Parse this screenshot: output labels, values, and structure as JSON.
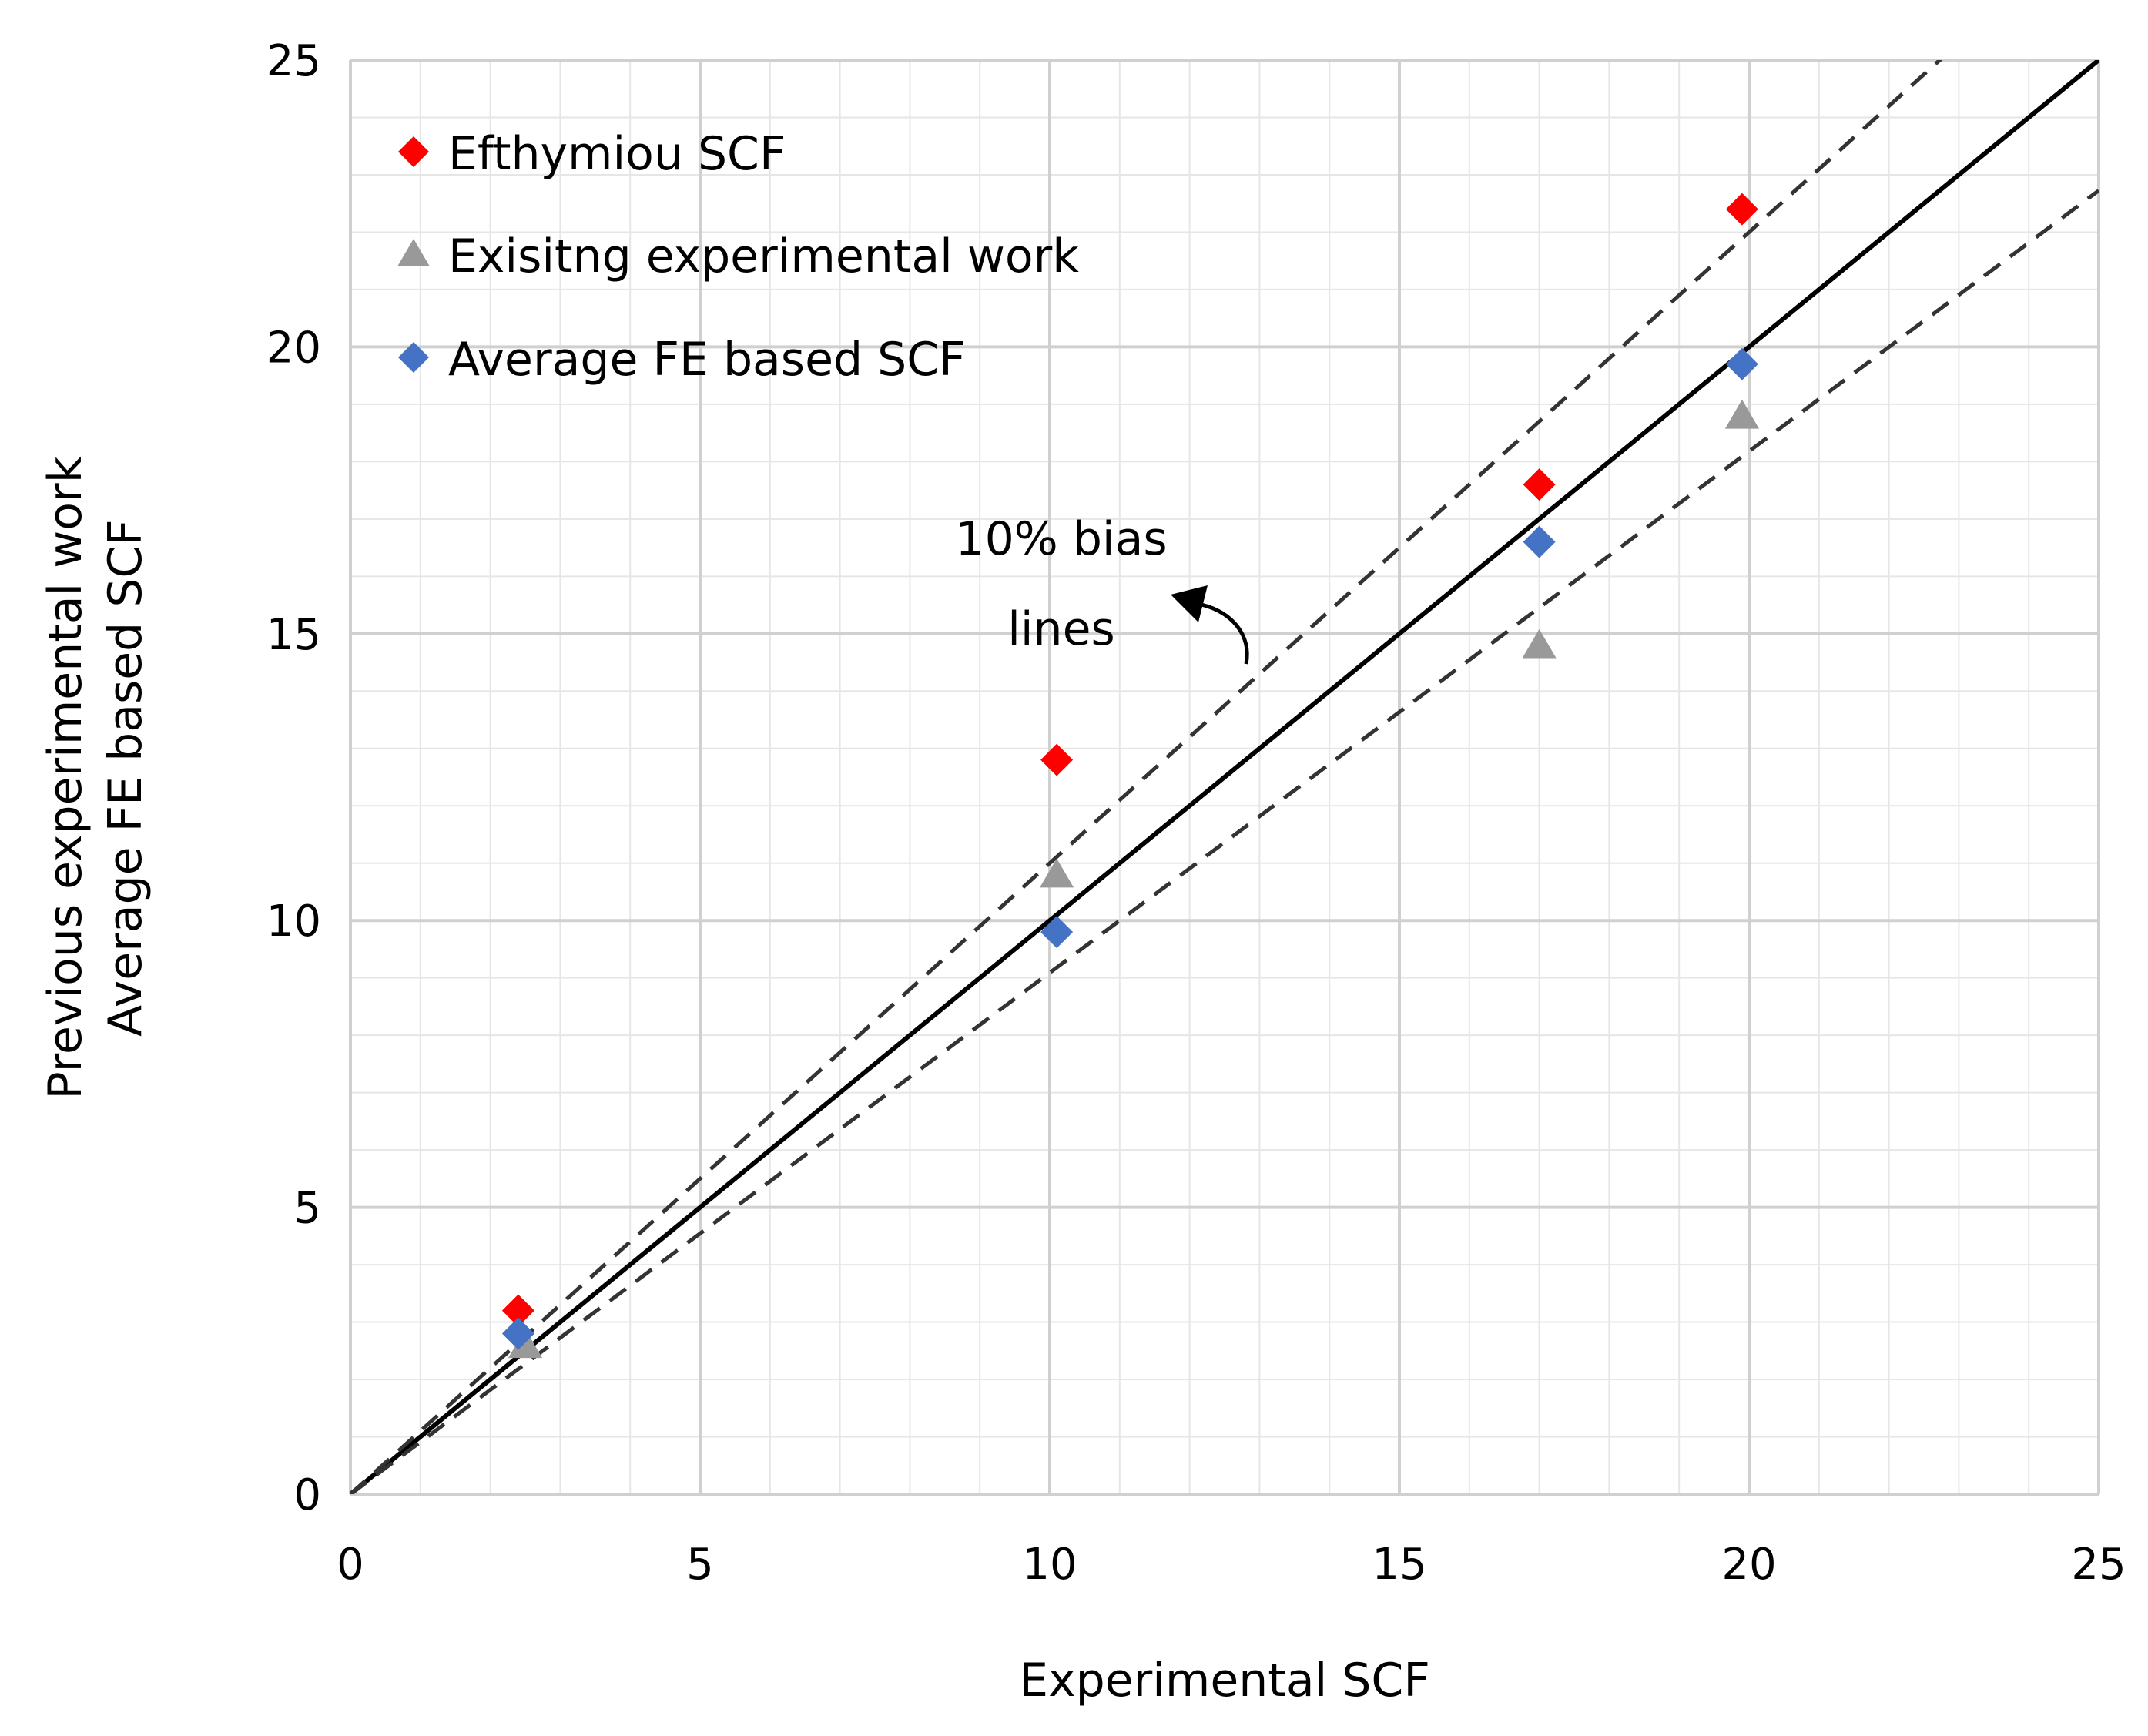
{
  "chart_data": {
    "type": "scatter",
    "xlabel": "Experimental SCF",
    "ylabel_lines": [
      "Previous experimental work",
      "Average FE based SCF"
    ],
    "xlim": [
      0,
      25
    ],
    "ylim": [
      0,
      25
    ],
    "x_ticks": [
      0,
      5,
      10,
      15,
      20,
      25
    ],
    "y_ticks": [
      0,
      5,
      10,
      15,
      20,
      25
    ],
    "x_tick_labels": [
      "0",
      "5",
      "10",
      "15",
      "20",
      "25"
    ],
    "y_tick_labels": [
      "0",
      "5",
      "10",
      "15",
      "20",
      "25"
    ],
    "minor_step": 1,
    "grid": true,
    "legend_position": "top-left",
    "series": [
      {
        "name": "Efthymiou SCF",
        "marker": "diamond",
        "color": "#ff0000",
        "points": [
          [
            2.4,
            3.2
          ],
          [
            10.1,
            12.8
          ],
          [
            17.0,
            17.6
          ],
          [
            19.9,
            22.4
          ]
        ]
      },
      {
        "name": "Exisitng experimental work",
        "marker": "triangle",
        "color": "#999999",
        "points": [
          [
            2.5,
            2.6
          ],
          [
            10.1,
            10.8
          ],
          [
            17.0,
            14.8
          ],
          [
            19.9,
            18.8
          ]
        ]
      },
      {
        "name": "Average FE based SCF",
        "marker": "diamond",
        "color": "#4472c4",
        "points": [
          [
            2.4,
            2.8
          ],
          [
            10.1,
            9.8
          ],
          [
            17.0,
            16.6
          ],
          [
            19.9,
            19.7
          ]
        ]
      }
    ],
    "reference_lines": [
      {
        "style": "solid",
        "color": "#000000",
        "slope": 1.0
      },
      {
        "style": "dashed",
        "color": "#333333",
        "slope": 1.1
      },
      {
        "style": "dashed",
        "color": "#333333",
        "slope": 0.909
      }
    ],
    "annotation": {
      "lines": [
        "10% bias",
        "lines"
      ],
      "arrow": true
    }
  }
}
